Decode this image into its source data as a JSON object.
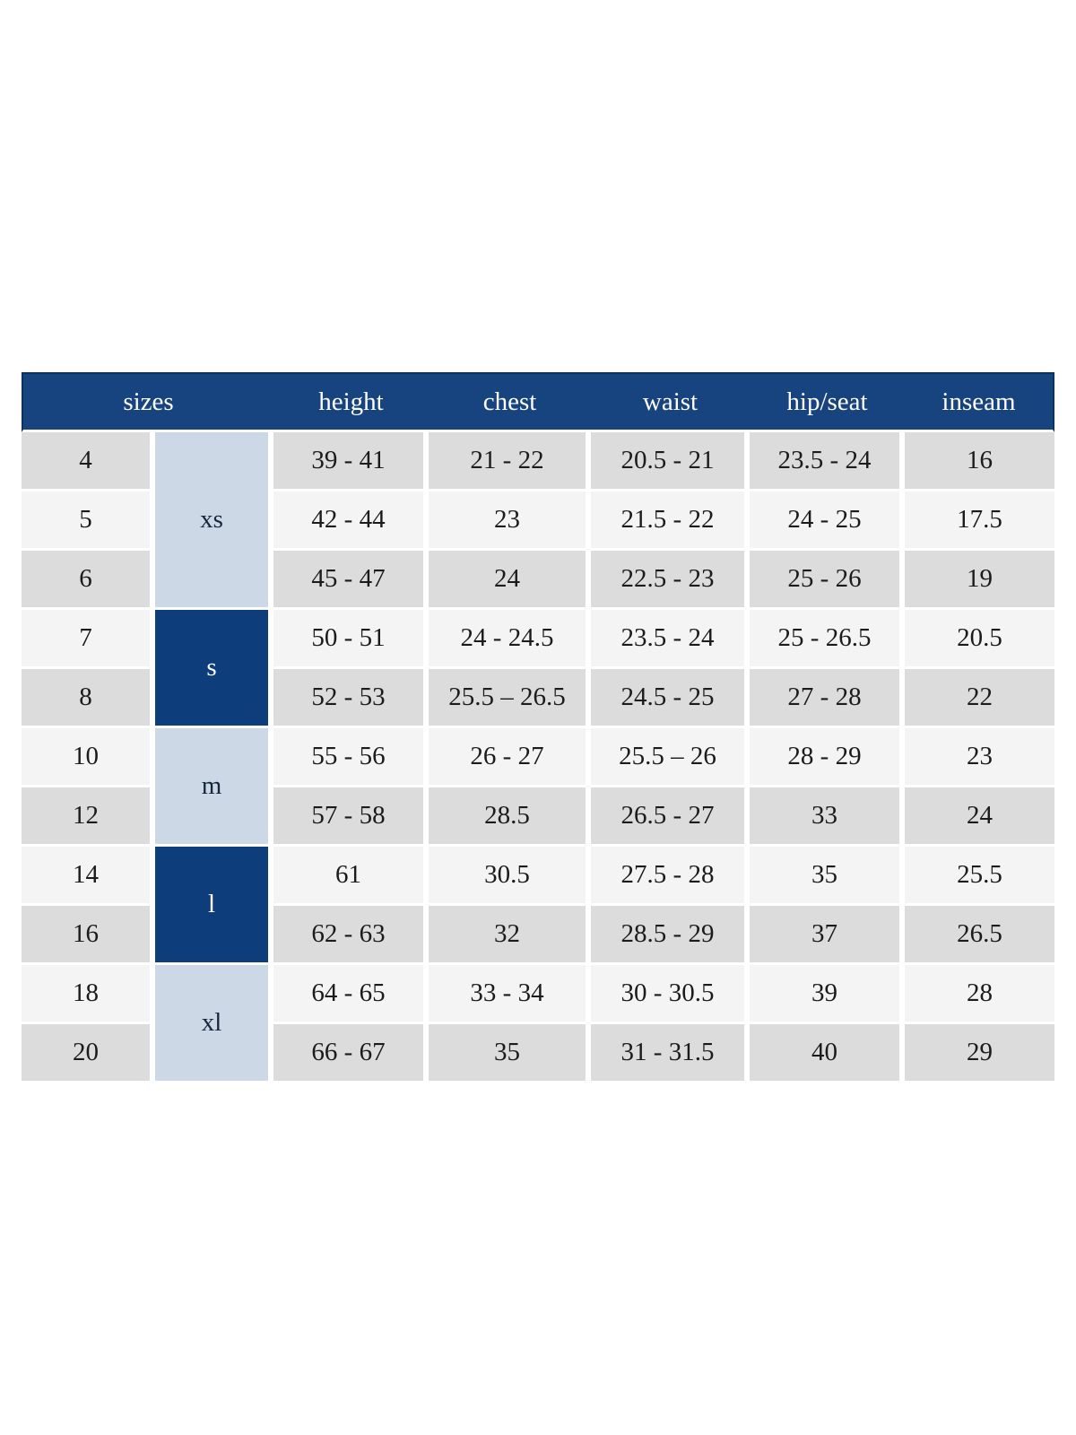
{
  "chart_data": {
    "type": "table",
    "columns": [
      "sizes",
      "height",
      "chest",
      "waist",
      "hip/seat",
      "inseam"
    ],
    "size_groups": [
      {
        "label": "xs",
        "span": 3,
        "tone": "light"
      },
      {
        "label": "s",
        "span": 2,
        "tone": "dark"
      },
      {
        "label": "m",
        "span": 2,
        "tone": "light"
      },
      {
        "label": "l",
        "span": 2,
        "tone": "dark"
      },
      {
        "label": "xl",
        "span": 2,
        "tone": "light"
      }
    ],
    "rows": [
      {
        "size": "4",
        "height": "39 - 41",
        "chest": "21 - 22",
        "waist": "20.5 - 21",
        "hip_seat": "23.5 - 24",
        "inseam": "16"
      },
      {
        "size": "5",
        "height": "42 - 44",
        "chest": "23",
        "waist": "21.5 - 22",
        "hip_seat": "24 - 25",
        "inseam": "17.5"
      },
      {
        "size": "6",
        "height": "45 - 47",
        "chest": "24",
        "waist": "22.5 - 23",
        "hip_seat": "25 - 26",
        "inseam": "19"
      },
      {
        "size": "7",
        "height": "50 - 51",
        "chest": "24 - 24.5",
        "waist": "23.5 - 24",
        "hip_seat": "25 - 26.5",
        "inseam": "20.5"
      },
      {
        "size": "8",
        "height": "52 - 53",
        "chest": "25.5 – 26.5",
        "waist": "24.5 - 25",
        "hip_seat": "27 - 28",
        "inseam": "22"
      },
      {
        "size": "10",
        "height": "55 - 56",
        "chest": "26 - 27",
        "waist": "25.5 – 26",
        "hip_seat": "28 - 29",
        "inseam": "23"
      },
      {
        "size": "12",
        "height": "57 - 58",
        "chest": "28.5",
        "waist": "26.5 - 27",
        "hip_seat": "33",
        "inseam": "24"
      },
      {
        "size": "14",
        "height": "61",
        "chest": "30.5",
        "waist": "27.5 - 28",
        "hip_seat": "35",
        "inseam": "25.5"
      },
      {
        "size": "16",
        "height": "62 - 63",
        "chest": "32",
        "waist": "28.5 - 29",
        "hip_seat": "37",
        "inseam": "26.5"
      },
      {
        "size": "18",
        "height": "64 - 65",
        "chest": "33 - 34",
        "waist": "30 - 30.5",
        "hip_seat": "39",
        "inseam": "28"
      },
      {
        "size": "20",
        "height": "66 - 67",
        "chest": "35",
        "waist": "31 - 31.5",
        "hip_seat": "40",
        "inseam": "29"
      }
    ]
  },
  "colors": {
    "header_bg": "#17437e",
    "header_border": "#0c3261",
    "group_dark": "#0e3d7c",
    "group_light": "#ccd8e6",
    "row_gray": "#dcdcdc",
    "row_light": "#f4f4f4",
    "cell_text": "#1b1b1b"
  }
}
